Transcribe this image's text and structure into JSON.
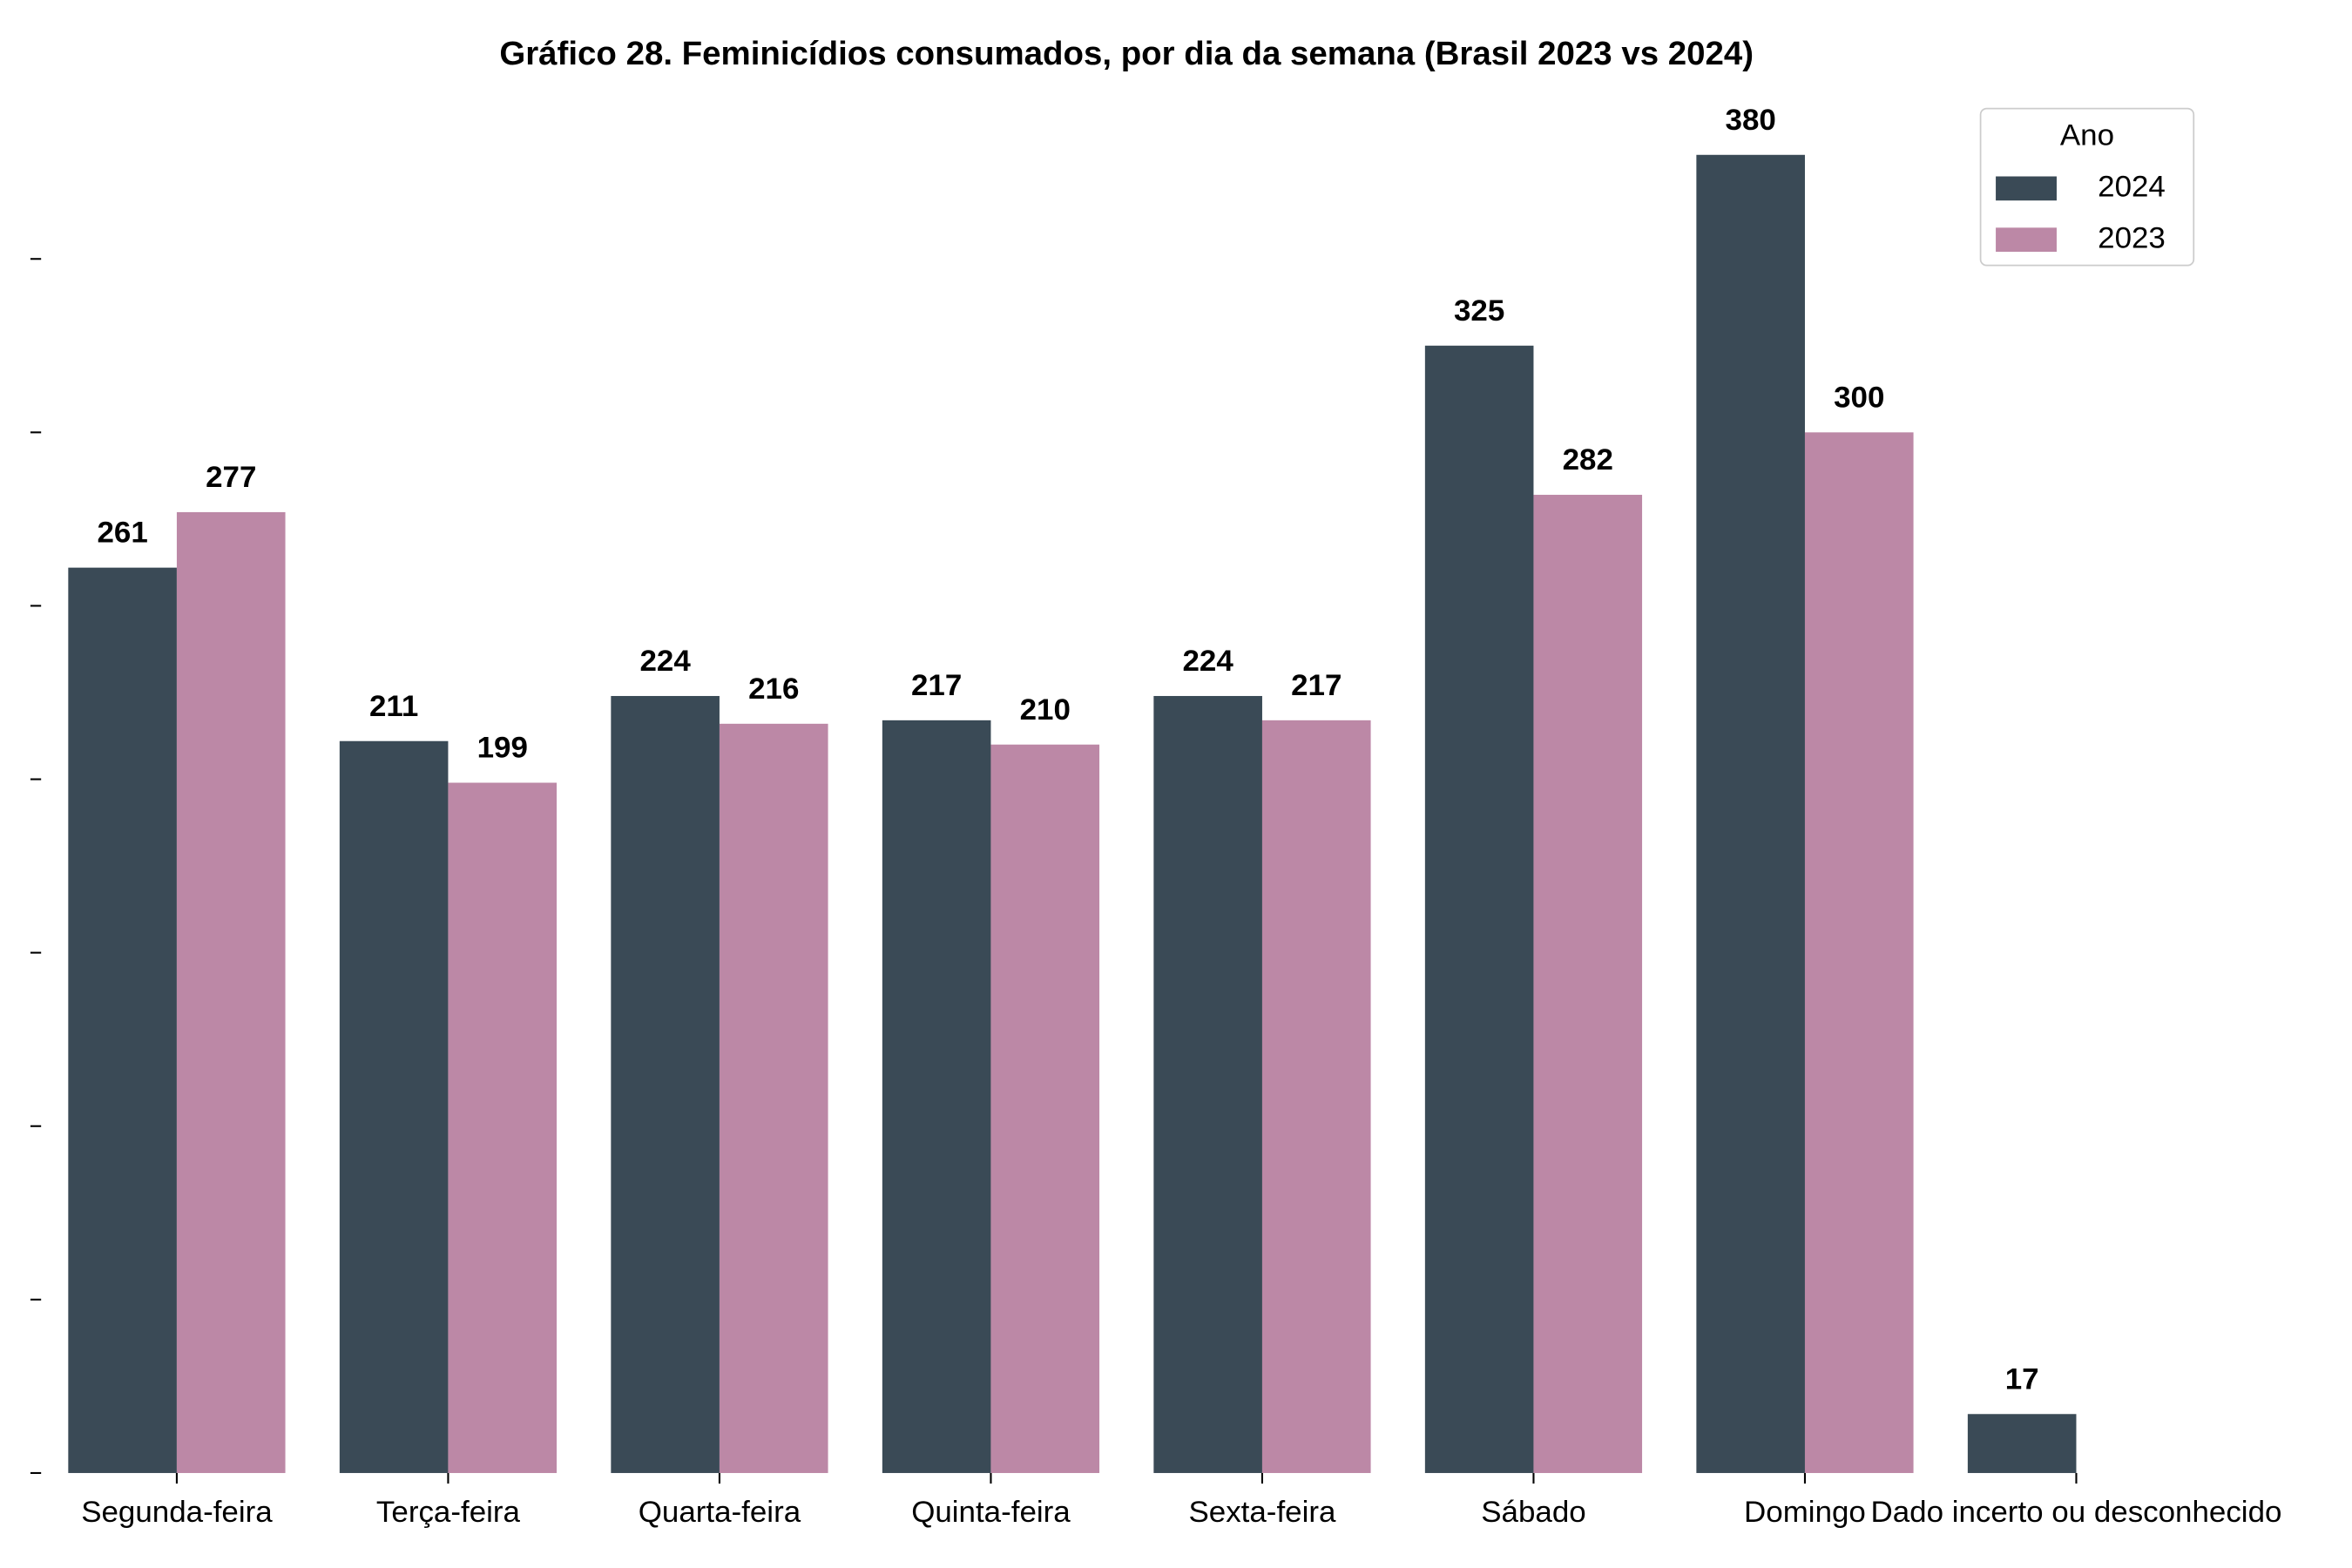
{
  "chart_data": {
    "type": "bar",
    "title": "Gráfico 28. Feminicídios consumados, por dia da semana (Brasil 2023 vs 2024)",
    "categories": [
      "Segunda-feira",
      "Terça-feira",
      "Quarta-feira",
      "Quinta-feira",
      "Sexta-feira",
      "Sábado",
      "Domingo",
      "Dado incerto ou desconhecido"
    ],
    "series": [
      {
        "name": "2024",
        "color": "#3a4a56",
        "values": [
          261,
          211,
          224,
          217,
          224,
          325,
          380,
          17
        ]
      },
      {
        "name": "2023",
        "color": "#bc88a6",
        "values": [
          277,
          199,
          216,
          210,
          217,
          282,
          300,
          null
        ]
      }
    ],
    "ylim": [
      0,
      399
    ],
    "yticks": [
      0,
      50,
      100,
      150,
      200,
      250,
      300,
      350
    ],
    "legend_title": "Ano",
    "legend_position": "upper right",
    "grid": false
  }
}
